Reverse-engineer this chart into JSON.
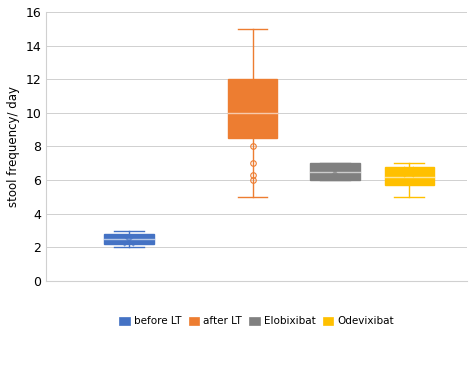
{
  "title": "",
  "ylabel": "stool frequency/ day",
  "ylim": [
    0,
    16
  ],
  "yticks": [
    0,
    2,
    4,
    6,
    8,
    10,
    12,
    14,
    16
  ],
  "background_color": "#ffffff",
  "grid_color": "#d0d0d0",
  "boxes": [
    {
      "label": "before LT",
      "color": "#4472c4",
      "x": 1.5,
      "q1": 2.2,
      "median": 2.5,
      "q3": 2.8,
      "whisker_low": 2.0,
      "whisker_high": 3.0,
      "mean": 2.35,
      "outliers": []
    },
    {
      "label": "after LT",
      "color": "#ed7d31",
      "x": 3.0,
      "q1": 8.5,
      "median": 10.0,
      "q3": 12.0,
      "whisker_low": 5.0,
      "whisker_high": 15.0,
      "mean": 10.4,
      "outliers": [
        6.0,
        6.3,
        7.0,
        8.0,
        9.0
      ]
    },
    {
      "label": "Elobixibat",
      "color": "#808080",
      "x": 4.0,
      "q1": 6.0,
      "median": 6.5,
      "q3": 7.0,
      "whisker_low": 6.0,
      "whisker_high": 7.0,
      "mean": 6.5,
      "outliers": []
    },
    {
      "label": "Odevixibat",
      "color": "#ffc000",
      "x": 4.9,
      "q1": 5.7,
      "median": 6.2,
      "q3": 6.8,
      "whisker_low": 5.0,
      "whisker_high": 7.0,
      "mean": 6.5,
      "outliers": []
    }
  ],
  "legend_labels": [
    "before LT",
    "after LT",
    "Elobixibat",
    "Odevixibat"
  ],
  "legend_colors": [
    "#4472c4",
    "#ed7d31",
    "#808080",
    "#ffc000"
  ],
  "box_width": 0.6,
  "xlim": [
    0.5,
    5.6
  ],
  "mean_marker_size": 7,
  "outlier_marker_size": 4
}
